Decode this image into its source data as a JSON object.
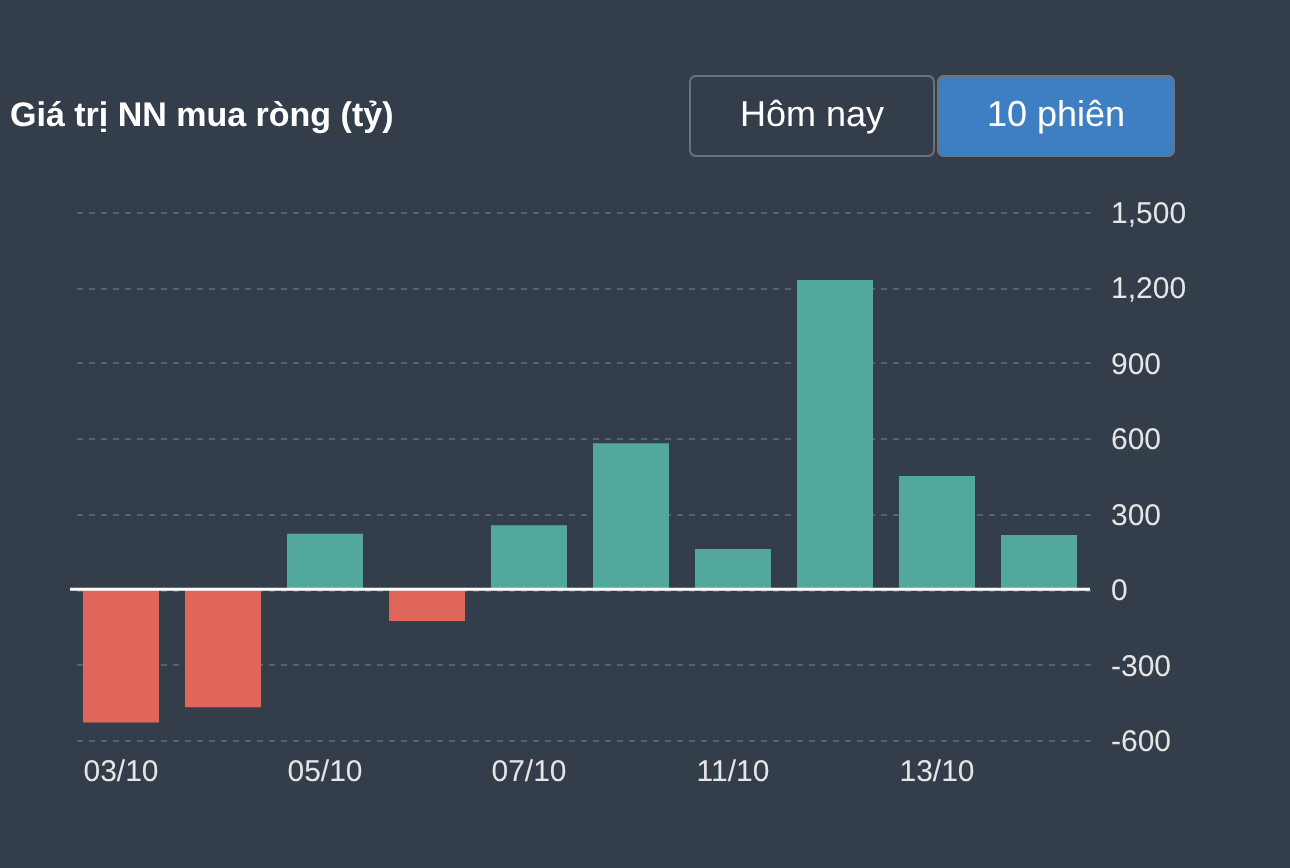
{
  "chart_data": {
    "type": "bar",
    "title": "Giá trị NN mua ròng (tỷ)",
    "annotations": [
      "Hôm nay",
      "10 phiên"
    ],
    "categories": [
      "03/10",
      null,
      "05/10",
      null,
      "07/10",
      null,
      "11/10",
      null,
      "13/10",
      null
    ],
    "values": [
      -530,
      -470,
      220,
      -127,
      254,
      580,
      160,
      1230,
      450,
      215
    ],
    "colors": [
      "#e0665a",
      "#e0665a",
      "#52a89b",
      "#e0665a",
      "#52a89b",
      "#52a89b",
      "#52a89b",
      "#52a89b",
      "#52a89b",
      "#52a89b"
    ],
    "ylim": [
      -600,
      1500
    ],
    "yticks": [
      -600,
      -300,
      0,
      300,
      600,
      900,
      {
        "value": 1200,
        "label": "1,200"
      },
      {
        "value": 1500,
        "label": "1,500"
      }
    ],
    "ref_lines": [
      {
        "axis": "y",
        "value": 0,
        "color": "#ffffff"
      }
    ],
    "grid": "y"
  }
}
